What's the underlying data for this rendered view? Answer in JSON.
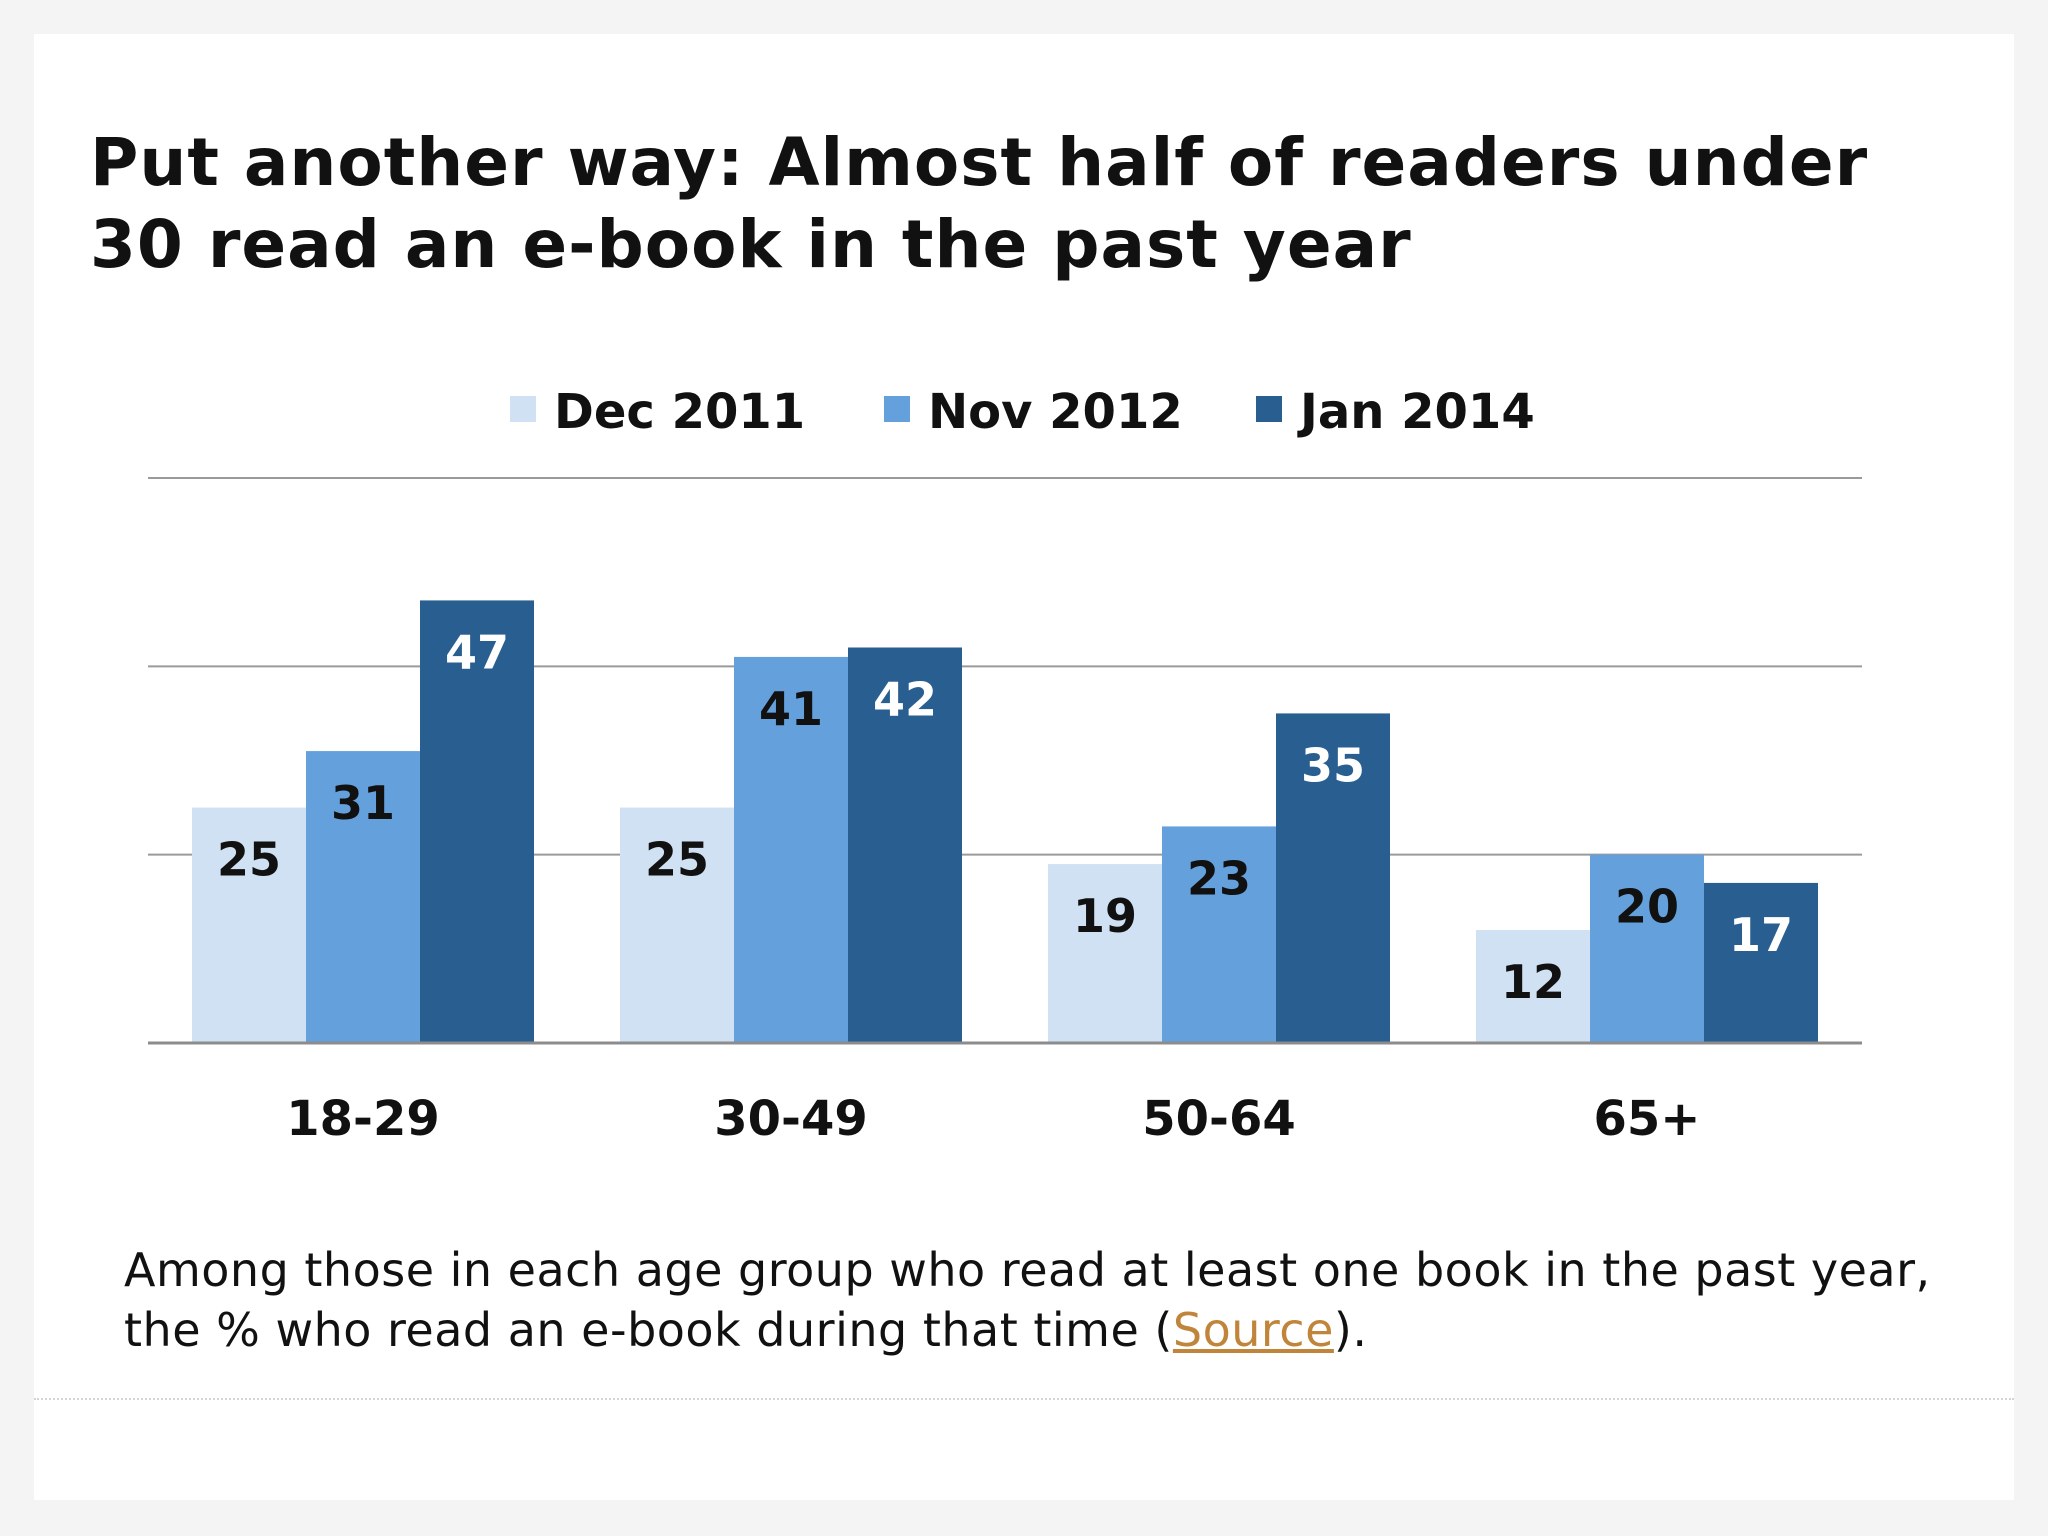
{
  "title": "Put another way: Almost half of readers under 30 read an e-book in the past year",
  "caption": {
    "text_before": "Among those in each age group who read at least one book in the past year, the % who read an e-book during that time (",
    "link_text": "Source",
    "text_after": ")."
  },
  "chart_data": {
    "type": "bar",
    "title": "Put another way: Almost half of readers under 30 read an e-book in the past year",
    "categories": [
      "18-29",
      "30-49",
      "50-64",
      "65+"
    ],
    "series": [
      {
        "name": "Dec 2011",
        "color": "#cfe1f3",
        "values": [
          25,
          25,
          19,
          12
        ]
      },
      {
        "name": "Nov 2012",
        "color": "#64a1dc",
        "values": [
          31,
          41,
          23,
          20
        ]
      },
      {
        "name": "Jan 2014",
        "color": "#285e90",
        "values": [
          47,
          42,
          35,
          17
        ]
      }
    ],
    "ylim": [
      0,
      60
    ],
    "gridlines": [
      20,
      40,
      60
    ],
    "legend_position": "top-center",
    "grid": true
  }
}
